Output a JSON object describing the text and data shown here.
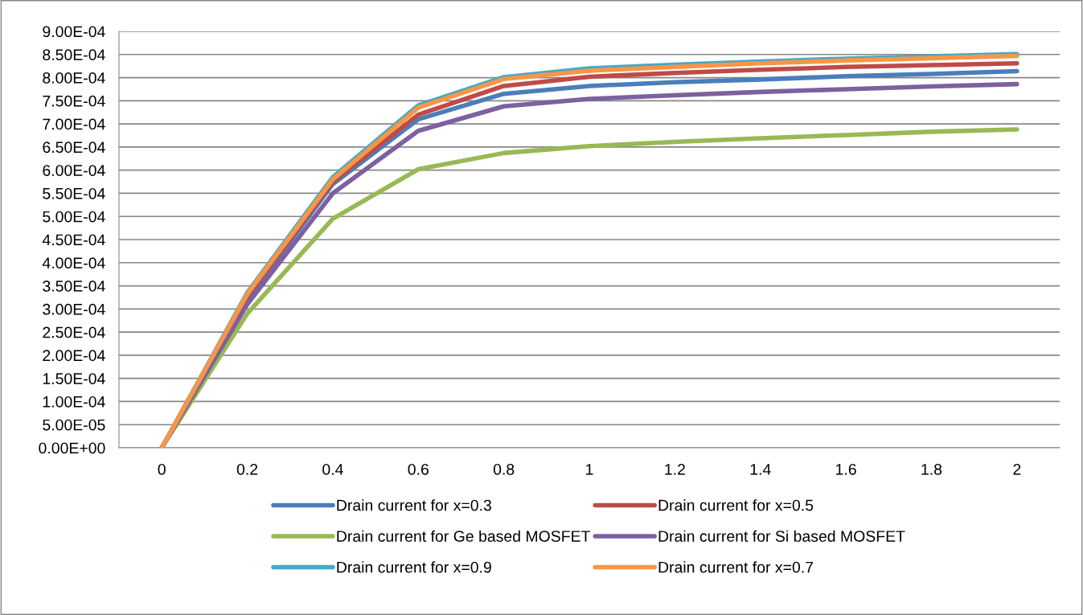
{
  "chart_data": {
    "type": "line",
    "categories": [
      "0",
      "0.2",
      "0.4",
      "0.6",
      "0.8",
      "1",
      "1.2",
      "1.4",
      "1.6",
      "1.8",
      "2"
    ],
    "series": [
      {
        "name": "Drain current for x=0.3",
        "color": "#4a7ebb",
        "values": [
          0,
          0.00032,
          0.00057,
          0.00071,
          0.000765,
          0.000782,
          0.00079,
          0.000796,
          0.000803,
          0.000808,
          0.000814
        ]
      },
      {
        "name": "Drain current for x=0.5",
        "color": "#be4b48",
        "values": [
          0,
          0.000327,
          0.000575,
          0.00072,
          0.000782,
          0.000802,
          0.00081,
          0.000817,
          0.000823,
          0.000827,
          0.000831
        ]
      },
      {
        "name": "Drain current for Ge based MOSFET",
        "color": "#98b954",
        "values": [
          0,
          0.00029,
          0.000495,
          0.000602,
          0.000637,
          0.000652,
          0.000661,
          0.000669,
          0.000676,
          0.000683,
          0.000688
        ]
      },
      {
        "name": "Drain current for Si based MOSFET",
        "color": "#7d60a0",
        "values": [
          0,
          0.00031,
          0.00055,
          0.000685,
          0.000738,
          0.000754,
          0.000762,
          0.000769,
          0.000775,
          0.000781,
          0.000786
        ]
      },
      {
        "name": "Drain current for x=0.9",
        "color": "#46aac5",
        "values": [
          0,
          0.000335,
          0.000585,
          0.00074,
          0.000801,
          0.00082,
          0.000828,
          0.000835,
          0.000841,
          0.000846,
          0.000851
        ]
      },
      {
        "name": "Drain current for x=0.7",
        "color": "#f79646",
        "values": [
          0,
          0.000332,
          0.00058,
          0.000735,
          0.000797,
          0.000815,
          0.000823,
          0.000831,
          0.000837,
          0.000842,
          0.000847
        ]
      }
    ],
    "ylim": [
      0,
      0.0009
    ],
    "yticks": [
      {
        "value": 0,
        "label": "0.00E+00"
      },
      {
        "value": 5e-05,
        "label": "5.00E-05"
      },
      {
        "value": 0.0001,
        "label": "1.00E-04"
      },
      {
        "value": 0.00015,
        "label": "1.50E-04"
      },
      {
        "value": 0.0002,
        "label": "2.00E-04"
      },
      {
        "value": 0.00025,
        "label": "2.50E-04"
      },
      {
        "value": 0.0003,
        "label": "3.00E-04"
      },
      {
        "value": 0.00035,
        "label": "3.50E-04"
      },
      {
        "value": 0.0004,
        "label": "4.00E-04"
      },
      {
        "value": 0.00045,
        "label": "4.50E-04"
      },
      {
        "value": 0.0005,
        "label": "5.00E-04"
      },
      {
        "value": 0.00055,
        "label": "5.50E-04"
      },
      {
        "value": 0.0006,
        "label": "6.00E-04"
      },
      {
        "value": 0.00065,
        "label": "6.50E-04"
      },
      {
        "value": 0.0007,
        "label": "7.00E-04"
      },
      {
        "value": 0.00075,
        "label": "7.50E-04"
      },
      {
        "value": 0.0008,
        "label": "8.00E-04"
      },
      {
        "value": 0.00085,
        "label": "8.50E-04"
      },
      {
        "value": 0.0009,
        "label": "9.00E-04"
      }
    ],
    "grid": "y",
    "legend": "bottom",
    "marker": "none",
    "line_style": "solid"
  }
}
